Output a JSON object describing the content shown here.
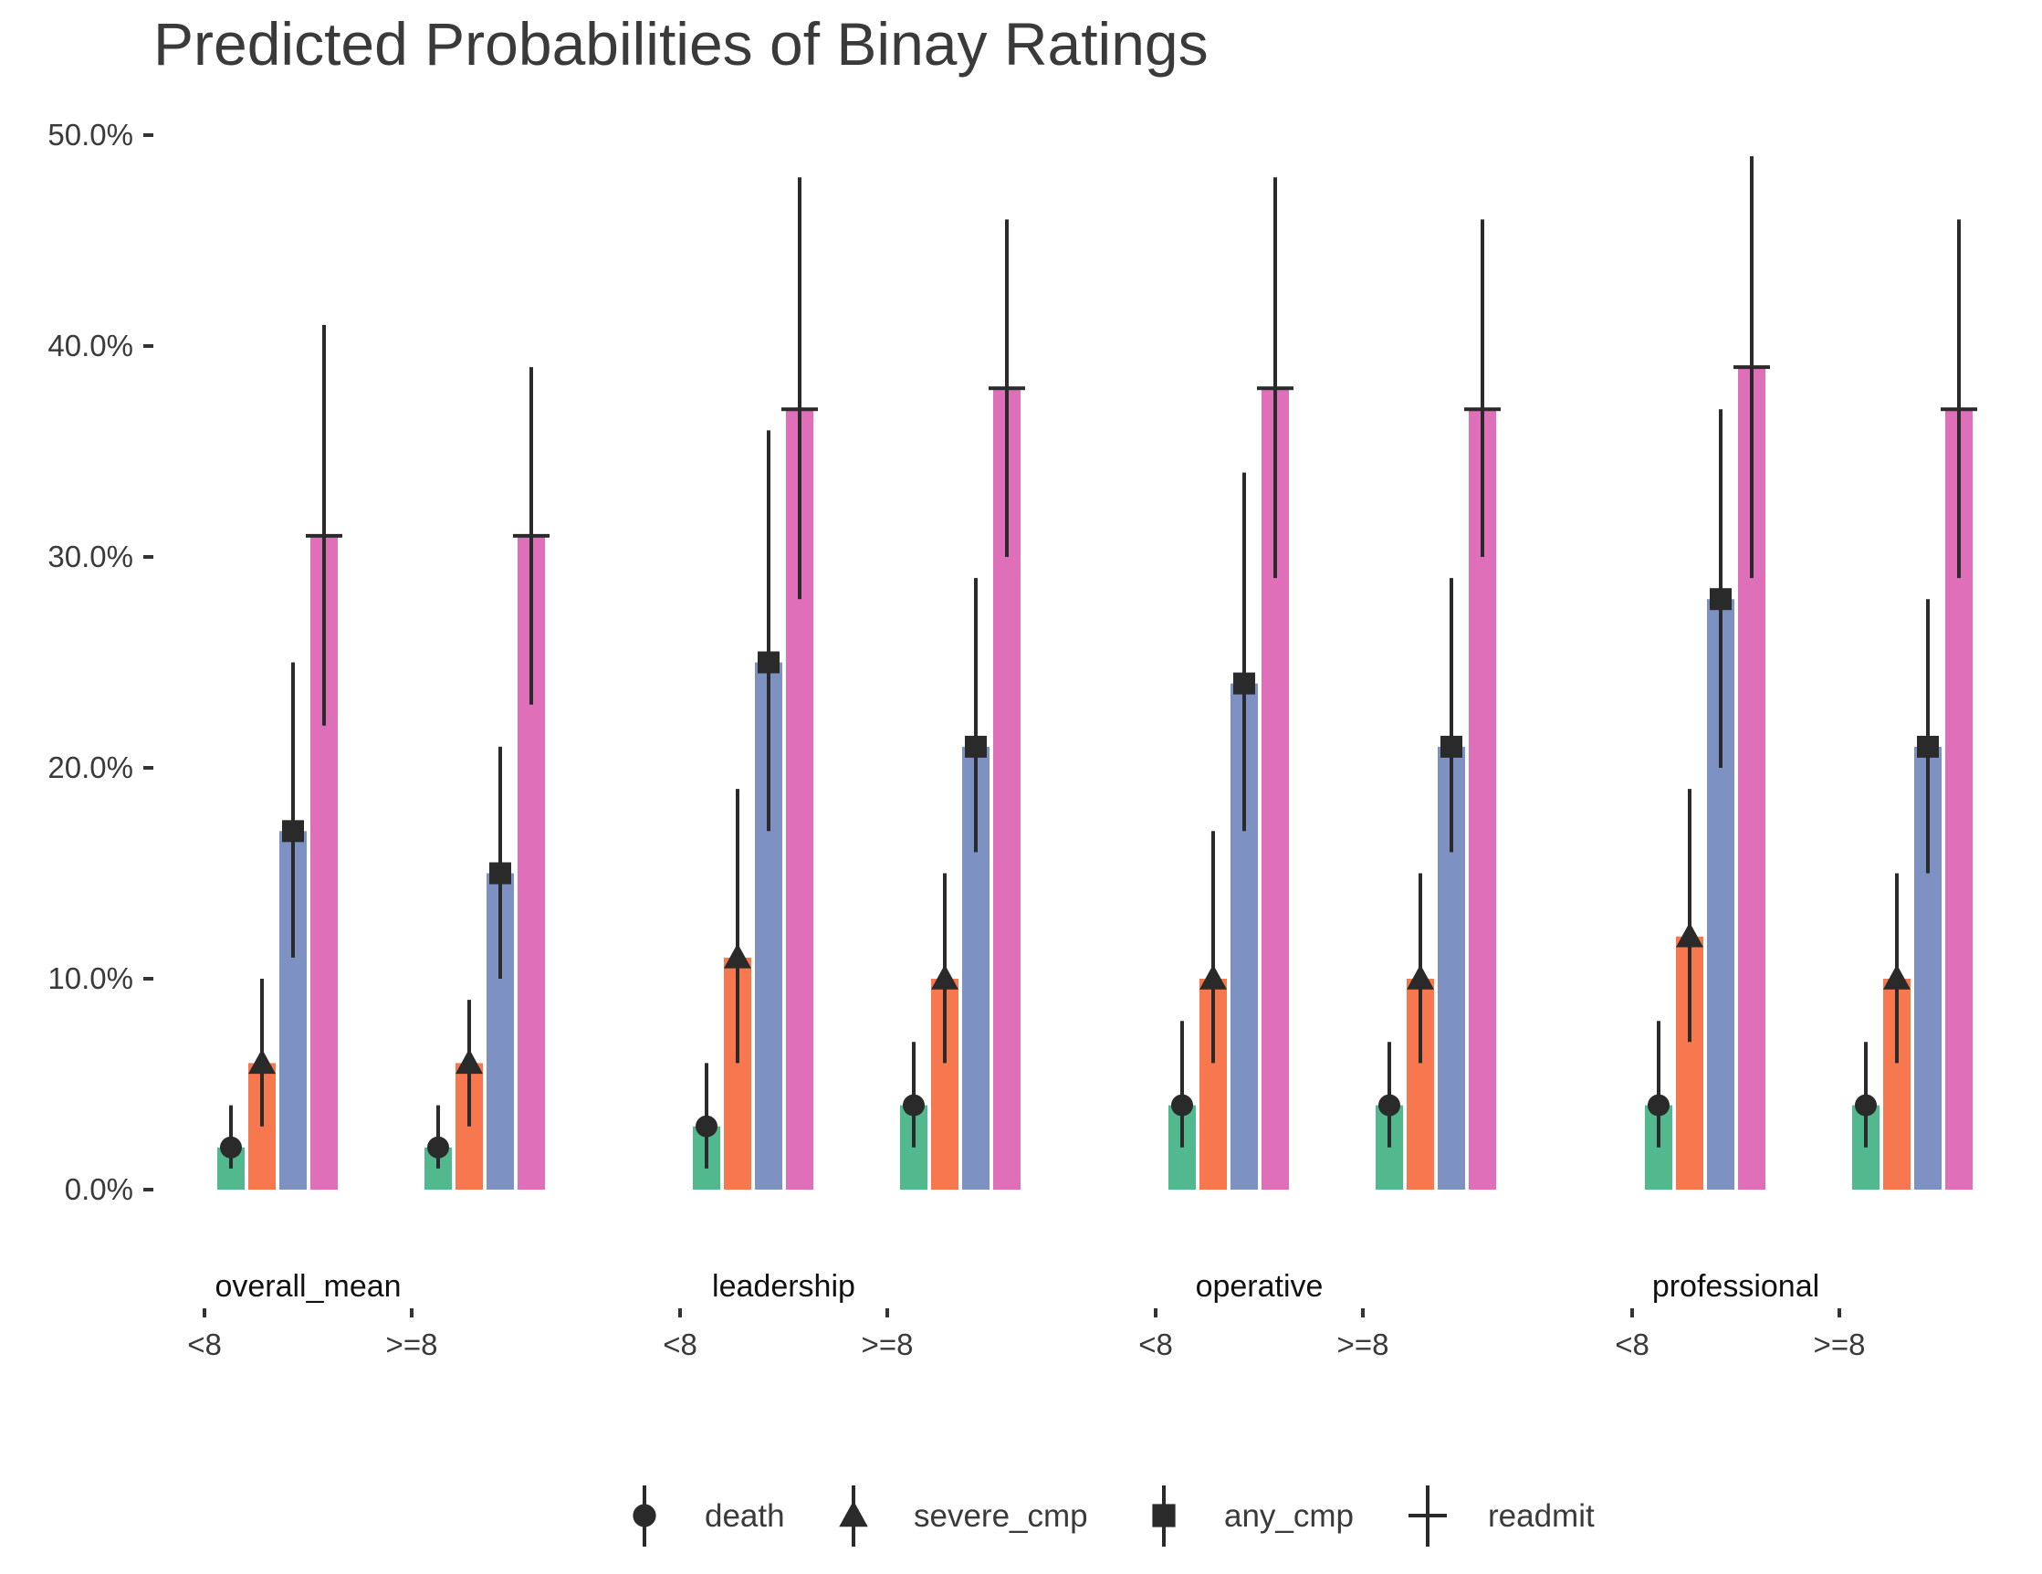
{
  "chart_data": {
    "type": "bar",
    "title": "Predicted Probabilities of Binay Ratings",
    "xlabel": "",
    "ylabel": "",
    "ylim": [
      0,
      0.5
    ],
    "y_ticks": [
      "0.0%",
      "10.0%",
      "20.0%",
      "30.0%",
      "40.0%",
      "50.0%"
    ],
    "facets": [
      "overall_mean",
      "leadership",
      "operative",
      "professional"
    ],
    "categories": [
      "<8",
      ">=8"
    ],
    "grid": false,
    "legend_position": "bottom",
    "series": [
      {
        "name": "death",
        "marker": "circle",
        "color": "#52B98F",
        "values": [
          [
            0.02,
            0.02
          ],
          [
            0.03,
            0.04
          ],
          [
            0.04,
            0.04
          ],
          [
            0.04,
            0.04
          ]
        ],
        "lower": [
          [
            0.01,
            0.01
          ],
          [
            0.01,
            0.02
          ],
          [
            0.02,
            0.02
          ],
          [
            0.02,
            0.02
          ]
        ],
        "upper": [
          [
            0.04,
            0.04
          ],
          [
            0.06,
            0.07
          ],
          [
            0.08,
            0.07
          ],
          [
            0.08,
            0.07
          ]
        ]
      },
      {
        "name": "severe_cmp",
        "marker": "triangle",
        "color": "#F7774E",
        "values": [
          [
            0.06,
            0.06
          ],
          [
            0.11,
            0.1
          ],
          [
            0.1,
            0.1
          ],
          [
            0.12,
            0.1
          ]
        ],
        "lower": [
          [
            0.03,
            0.03
          ],
          [
            0.06,
            0.06
          ],
          [
            0.06,
            0.06
          ],
          [
            0.07,
            0.06
          ]
        ],
        "upper": [
          [
            0.1,
            0.09
          ],
          [
            0.19,
            0.15
          ],
          [
            0.17,
            0.15
          ],
          [
            0.19,
            0.15
          ]
        ]
      },
      {
        "name": "any_cmp",
        "marker": "square",
        "color": "#7D91C3",
        "values": [
          [
            0.17,
            0.15
          ],
          [
            0.25,
            0.21
          ],
          [
            0.24,
            0.21
          ],
          [
            0.28,
            0.21
          ]
        ],
        "lower": [
          [
            0.11,
            0.1
          ],
          [
            0.17,
            0.16
          ],
          [
            0.17,
            0.16
          ],
          [
            0.2,
            0.15
          ]
        ],
        "upper": [
          [
            0.25,
            0.21
          ],
          [
            0.36,
            0.29
          ],
          [
            0.34,
            0.29
          ],
          [
            0.37,
            0.28
          ]
        ]
      },
      {
        "name": "readmit",
        "marker": "cross",
        "color": "#DE6FB8",
        "values": [
          [
            0.31,
            0.31
          ],
          [
            0.37,
            0.38
          ],
          [
            0.38,
            0.37
          ],
          [
            0.39,
            0.37
          ]
        ],
        "lower": [
          [
            0.22,
            0.23
          ],
          [
            0.28,
            0.3
          ],
          [
            0.29,
            0.3
          ],
          [
            0.29,
            0.29
          ]
        ],
        "upper": [
          [
            0.41,
            0.39
          ],
          [
            0.48,
            0.46
          ],
          [
            0.48,
            0.46
          ],
          [
            0.49,
            0.46
          ]
        ]
      }
    ]
  }
}
